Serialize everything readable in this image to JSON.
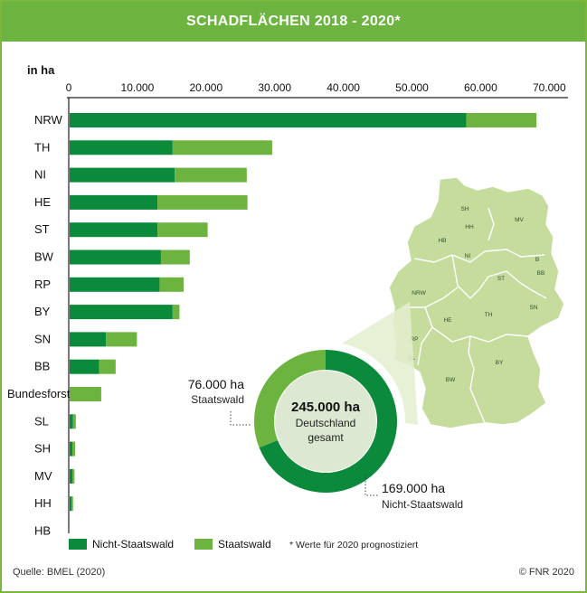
{
  "chart_data": {
    "type": "bar",
    "orientation": "horizontal",
    "stacked": true,
    "title": "SCHADFLÄCHEN 2018 - 2020*",
    "unit_label": "in ha",
    "xlim": [
      0,
      72000
    ],
    "ticks": [
      0,
      10000,
      20000,
      30000,
      40000,
      50000,
      60000,
      70000
    ],
    "tick_labels": [
      "0",
      "10.000",
      "20.000",
      "30.000",
      "40.000",
      "50.000",
      "60.000",
      "70.000"
    ],
    "categories": [
      "NRW",
      "TH",
      "NI",
      "HE",
      "ST",
      "BW",
      "RP",
      "BY",
      "SN",
      "BB",
      "Bundesforst",
      "SL",
      "SH",
      "MV",
      "HH",
      "HB"
    ],
    "series": [
      {
        "name": "Nicht-Staatswald",
        "color": "#0a8a3a",
        "values": [
          57800,
          15000,
          15300,
          12800,
          12800,
          13300,
          13100,
          15000,
          5300,
          4300,
          0,
          500,
          400,
          400,
          300,
          0
        ]
      },
      {
        "name": "Staatswald",
        "color": "#6cb33f",
        "values": [
          10200,
          14500,
          10500,
          13100,
          7300,
          4200,
          3500,
          1000,
          4500,
          2400,
          4600,
          400,
          400,
          300,
          200,
          0
        ]
      }
    ],
    "legend_placement": "bottom-left",
    "footnote": "* Werte für 2020 prognostiziert",
    "donut": {
      "total_value": "245.000 ha",
      "total_line1": "Deutschland",
      "total_line2": "gesamt",
      "segments": [
        {
          "value": 169000,
          "label_value": "169.000 ha",
          "label_name": "Nicht-Staatswald",
          "color": "#0a8a3a"
        },
        {
          "value": 76000,
          "label_value": "76.000 ha",
          "label_name": "Staatswald",
          "color": "#6cb33f"
        }
      ]
    },
    "map_labels": [
      "SH",
      "HH",
      "MV",
      "HB",
      "NI",
      "B",
      "BB",
      "ST",
      "NRW",
      "HE",
      "TH",
      "SN",
      "RP",
      "SL",
      "BW",
      "BY"
    ]
  },
  "footer": {
    "source": "Quelle: BMEL (2020)",
    "copyright": "© FNR 2020"
  },
  "colors": {
    "header": "#6cb33f",
    "map_fill": "#c5dc9c",
    "map_stroke": "#ffffff"
  }
}
